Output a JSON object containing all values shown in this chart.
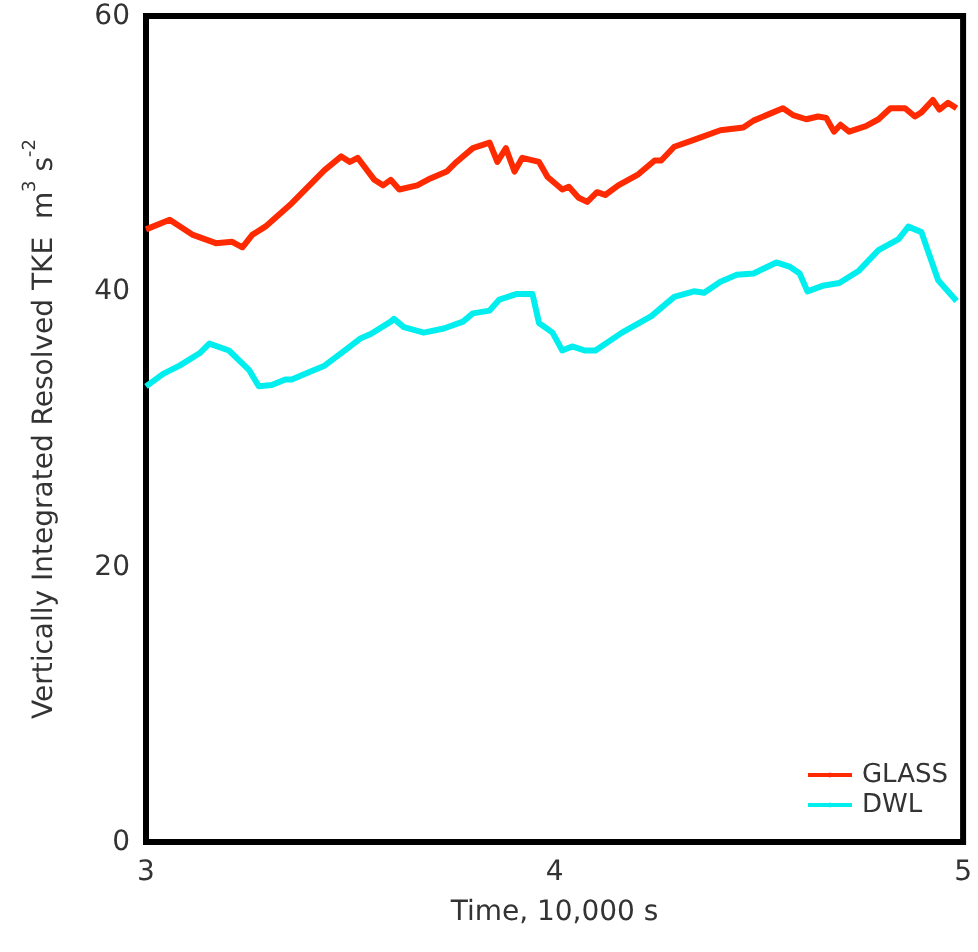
{
  "chart_data": {
    "type": "line",
    "xlabel": "Time, 10,000 s",
    "ylabel": "Vertically Integrated Resolved TKE  m$^{3}$ s$^{-2}$",
    "xlim": [
      3,
      5
    ],
    "xticks": [
      3,
      4,
      5
    ],
    "ylim": [
      0,
      60
    ],
    "yticks": [
      0,
      20,
      40,
      60
    ],
    "grid": false,
    "legend": "bottom right",
    "marker": "none",
    "line_style": "solid",
    "series": [
      {
        "name": "GLASS",
        "color": "#ff2a00",
        "x": [
          3.0,
          3.058,
          3.115,
          3.171,
          3.211,
          3.236,
          3.26,
          3.292,
          3.357,
          3.437,
          3.478,
          3.499,
          3.518,
          3.559,
          3.58,
          3.599,
          3.62,
          3.664,
          3.696,
          3.736,
          3.76,
          3.8,
          3.841,
          3.86,
          3.881,
          3.902,
          3.921,
          3.962,
          3.983,
          4.019,
          4.035,
          4.059,
          4.08,
          4.104,
          4.124,
          4.156,
          4.205,
          4.245,
          4.261,
          4.293,
          4.341,
          4.406,
          4.462,
          4.487,
          4.519,
          4.559,
          4.584,
          4.616,
          4.645,
          4.665,
          4.684,
          4.7,
          4.721,
          4.762,
          4.793,
          4.822,
          4.858,
          4.882,
          4.898,
          4.926,
          4.942,
          4.963,
          4.984
        ],
        "values": [
          44.5,
          45.2,
          44.1,
          43.5,
          43.6,
          43.2,
          44.1,
          44.7,
          46.4,
          48.8,
          49.8,
          49.4,
          49.7,
          48.1,
          47.7,
          48.1,
          47.4,
          47.7,
          48.2,
          48.7,
          49.4,
          50.4,
          50.8,
          49.4,
          50.4,
          48.7,
          49.7,
          49.4,
          48.3,
          47.4,
          47.6,
          46.8,
          46.5,
          47.2,
          47.0,
          47.7,
          48.5,
          49.5,
          49.5,
          50.5,
          51.0,
          51.7,
          51.9,
          52.4,
          52.8,
          53.3,
          52.8,
          52.5,
          52.7,
          52.6,
          51.6,
          52.1,
          51.6,
          52.0,
          52.5,
          53.3,
          53.3,
          52.7,
          53.0,
          53.9,
          53.2,
          53.7,
          53.3
        ]
      },
      {
        "name": "DWL",
        "color": "#00eeee",
        "x": [
          3.0,
          3.042,
          3.082,
          3.131,
          3.155,
          3.203,
          3.252,
          3.276,
          3.308,
          3.341,
          3.357,
          3.397,
          3.437,
          3.486,
          3.526,
          3.55,
          3.599,
          3.607,
          3.631,
          3.68,
          3.729,
          3.776,
          3.8,
          3.841,
          3.865,
          3.906,
          3.946,
          3.962,
          3.995,
          4.019,
          4.043,
          4.075,
          4.1,
          4.165,
          4.213,
          4.237,
          4.293,
          4.341,
          4.366,
          4.406,
          4.446,
          4.487,
          4.543,
          4.575,
          4.6,
          4.619,
          4.656,
          4.697,
          4.745,
          4.793,
          4.842,
          4.866,
          4.898,
          4.939,
          4.984
        ],
        "values": [
          33.1,
          34.0,
          34.6,
          35.5,
          36.2,
          35.7,
          34.3,
          33.1,
          33.2,
          33.6,
          33.6,
          34.1,
          34.6,
          35.7,
          36.6,
          36.9,
          37.8,
          38.0,
          37.4,
          37.0,
          37.3,
          37.8,
          38.4,
          38.6,
          39.4,
          39.8,
          39.8,
          37.7,
          37.0,
          35.7,
          36.0,
          35.7,
          35.7,
          37.0,
          37.8,
          38.2,
          39.6,
          40.0,
          39.9,
          40.7,
          41.2,
          41.3,
          42.1,
          41.8,
          41.3,
          40.0,
          40.4,
          40.6,
          41.5,
          43.0,
          43.8,
          44.7,
          44.3,
          40.8,
          39.3
        ]
      }
    ]
  }
}
